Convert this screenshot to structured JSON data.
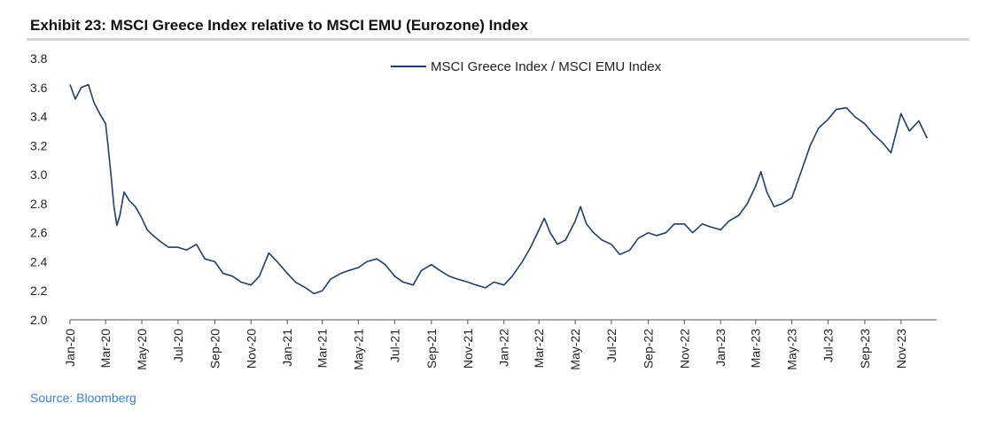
{
  "header": {
    "title": "Exhibit 23: MSCI Greece Index relative to MSCI EMU (Eurozone) Index"
  },
  "footer": {
    "source": "Source: Bloomberg"
  },
  "colors": {
    "series": "#1f3f6b",
    "rule": "#d4d4d4",
    "source_text": "#3a7fd5"
  },
  "chart_data": {
    "type": "line",
    "title": "Exhibit 23: MSCI Greece Index relative to MSCI EMU (Eurozone) Index",
    "xlabel": "",
    "ylabel": "",
    "ylim": [
      2.0,
      3.8
    ],
    "xlim": [
      "2020-01-01",
      "2023-12-31"
    ],
    "grid": false,
    "legend_position": "top-center",
    "y_ticks": [
      "2.0",
      "2.2",
      "2.4",
      "2.6",
      "2.8",
      "3.0",
      "3.2",
      "3.4",
      "3.6",
      "3.8"
    ],
    "x_ticks": [
      "Jan-20",
      "Mar-20",
      "May-20",
      "Jul-20",
      "Sep-20",
      "Nov-20",
      "Jan-21",
      "Mar-21",
      "May-21",
      "Jul-21",
      "Sep-21",
      "Nov-21",
      "Jan-22",
      "Mar-22",
      "May-22",
      "Jul-22",
      "Sep-22",
      "Nov-22",
      "Jan-23",
      "Mar-23",
      "May-23",
      "Jul-23",
      "Sep-23",
      "Nov-23"
    ],
    "series": [
      {
        "name": "MSCI Greece Index / MSCI EMU Index",
        "x": [
          "2020-01-01",
          "2020-01-10",
          "2020-01-20",
          "2020-02-01",
          "2020-02-10",
          "2020-02-20",
          "2020-03-01",
          "2020-03-05",
          "2020-03-10",
          "2020-03-15",
          "2020-03-20",
          "2020-03-25",
          "2020-04-01",
          "2020-04-10",
          "2020-04-20",
          "2020-05-01",
          "2020-05-10",
          "2020-05-20",
          "2020-06-01",
          "2020-06-15",
          "2020-07-01",
          "2020-07-15",
          "2020-08-01",
          "2020-08-15",
          "2020-09-01",
          "2020-09-15",
          "2020-10-01",
          "2020-10-15",
          "2020-11-01",
          "2020-11-15",
          "2020-12-01",
          "2020-12-15",
          "2021-01-01",
          "2021-01-15",
          "2021-02-01",
          "2021-02-15",
          "2021-03-01",
          "2021-03-15",
          "2021-04-01",
          "2021-04-15",
          "2021-05-01",
          "2021-05-15",
          "2021-06-01",
          "2021-06-15",
          "2021-07-01",
          "2021-07-15",
          "2021-08-01",
          "2021-08-15",
          "2021-09-01",
          "2021-09-15",
          "2021-10-01",
          "2021-10-15",
          "2021-11-01",
          "2021-11-15",
          "2021-12-01",
          "2021-12-15",
          "2022-01-01",
          "2022-01-15",
          "2022-02-01",
          "2022-02-15",
          "2022-03-01",
          "2022-03-10",
          "2022-03-20",
          "2022-04-01",
          "2022-04-15",
          "2022-05-01",
          "2022-05-10",
          "2022-05-20",
          "2022-06-01",
          "2022-06-15",
          "2022-07-01",
          "2022-07-15",
          "2022-08-01",
          "2022-08-15",
          "2022-09-01",
          "2022-09-15",
          "2022-10-01",
          "2022-10-15",
          "2022-11-01",
          "2022-11-15",
          "2022-12-01",
          "2022-12-15",
          "2023-01-01",
          "2023-01-15",
          "2023-02-01",
          "2023-02-15",
          "2023-03-01",
          "2023-03-10",
          "2023-03-20",
          "2023-04-01",
          "2023-04-15",
          "2023-05-01",
          "2023-05-15",
          "2023-06-01",
          "2023-06-15",
          "2023-07-01",
          "2023-07-15",
          "2023-08-01",
          "2023-08-15",
          "2023-09-01",
          "2023-09-15",
          "2023-10-01",
          "2023-10-15",
          "2023-11-01",
          "2023-11-15",
          "2023-12-01",
          "2023-12-15"
        ],
        "values": [
          3.62,
          3.52,
          3.6,
          3.62,
          3.5,
          3.42,
          3.35,
          3.2,
          3.0,
          2.78,
          2.65,
          2.72,
          2.88,
          2.82,
          2.78,
          2.7,
          2.62,
          2.58,
          2.54,
          2.5,
          2.5,
          2.48,
          2.52,
          2.42,
          2.4,
          2.32,
          2.3,
          2.26,
          2.24,
          2.3,
          2.46,
          2.4,
          2.32,
          2.26,
          2.22,
          2.18,
          2.2,
          2.28,
          2.32,
          2.34,
          2.36,
          2.4,
          2.42,
          2.38,
          2.3,
          2.26,
          2.24,
          2.34,
          2.38,
          2.34,
          2.3,
          2.28,
          2.26,
          2.24,
          2.22,
          2.26,
          2.24,
          2.3,
          2.4,
          2.5,
          2.62,
          2.7,
          2.6,
          2.52,
          2.55,
          2.68,
          2.78,
          2.66,
          2.6,
          2.55,
          2.52,
          2.45,
          2.48,
          2.56,
          2.6,
          2.58,
          2.6,
          2.66,
          2.66,
          2.6,
          2.66,
          2.64,
          2.62,
          2.68,
          2.72,
          2.8,
          2.92,
          3.02,
          2.88,
          2.78,
          2.8,
          2.84,
          3.0,
          3.2,
          3.32,
          3.38,
          3.45,
          3.46,
          3.4,
          3.35,
          3.28,
          3.22,
          3.15,
          3.42,
          3.3,
          3.37,
          3.25
        ]
      }
    ]
  }
}
